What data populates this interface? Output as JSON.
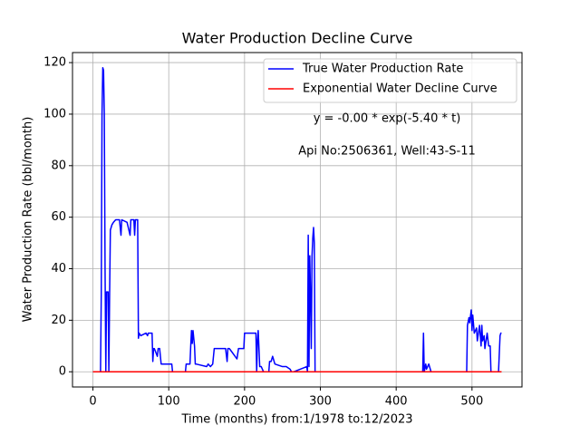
{
  "chart_data": {
    "type": "line",
    "title": "Water Production Decline Curve",
    "x_label": "Time (months) from:1/1978 to:12/2023",
    "y_label": "Water Production Rate (bbl/month)",
    "annotations": [
      "y = -0.00 * exp(-5.40 * t)",
      "Api No:2506361, Well:43-S-11"
    ],
    "xlim": [
      -26.95,
      565.95
    ],
    "ylim": [
      -5.9,
      123.9
    ],
    "xticks": [
      0,
      100,
      200,
      300,
      400,
      500
    ],
    "yticks": [
      0,
      20,
      40,
      60,
      80,
      100,
      120
    ],
    "grid": true,
    "legend": "upper right",
    "series": [
      {
        "name": "True Water Production Rate",
        "color": "#0000ff",
        "x": [
          0,
          10,
          11,
          12,
          13,
          14,
          15,
          16,
          17,
          18,
          20,
          21,
          22,
          23,
          25,
          27,
          30,
          35,
          37,
          38,
          45,
          49,
          50,
          54,
          55,
          56,
          58,
          59,
          60,
          61,
          63,
          70,
          72,
          73,
          78,
          79,
          80,
          81,
          85,
          86,
          88,
          90,
          104,
          105,
          122,
          123,
          128,
          129,
          130,
          131,
          132,
          134,
          135,
          136,
          150,
          152,
          155,
          158,
          160,
          175,
          177,
          178,
          180,
          190,
          192,
          199,
          200,
          215,
          216,
          217,
          218,
          220,
          222,
          225,
          232,
          233,
          235,
          237,
          238,
          240,
          250,
          255,
          260,
          262,
          265,
          282,
          283,
          284,
          285,
          286,
          287,
          288,
          289,
          290,
          291,
          292,
          293,
          435,
          436,
          437,
          439,
          440,
          443,
          446,
          493,
          494,
          496,
          497,
          499,
          500,
          501,
          503,
          506,
          507,
          510,
          512,
          513,
          514,
          516,
          517,
          520,
          522,
          524,
          525,
          535,
          537,
          538,
          539
        ],
        "values": [
          0,
          0,
          30,
          100,
          118,
          117,
          100,
          40,
          0,
          31,
          31,
          0,
          30,
          55,
          57,
          58,
          59,
          59,
          53,
          59,
          58,
          53,
          59,
          59,
          53,
          59,
          59,
          59,
          13,
          15,
          14,
          15,
          14,
          15,
          15,
          4,
          9,
          9,
          6,
          9,
          9,
          3,
          3,
          0,
          0,
          3,
          3,
          10,
          16,
          11,
          16,
          10,
          3,
          3,
          2,
          3,
          2,
          3,
          9,
          9,
          4,
          9,
          9,
          5,
          9,
          9,
          15,
          15,
          0,
          12,
          16,
          2,
          2,
          0,
          0,
          4,
          4,
          6,
          5,
          3,
          2,
          2,
          1,
          0,
          0,
          2,
          0,
          53,
          2,
          45,
          30,
          9,
          45,
          52,
          56,
          50,
          0,
          0,
          15,
          0,
          3,
          1,
          3,
          0,
          0,
          18,
          21,
          19,
          24,
          16,
          22,
          15,
          17,
          12,
          18,
          10,
          18,
          12,
          14,
          9,
          15,
          10,
          10,
          0,
          0,
          14,
          15,
          15
        ]
      },
      {
        "name": "Exponential Water Decline Curve",
        "color": "#ff0000",
        "x": [
          0,
          539
        ],
        "values": [
          0,
          0
        ]
      }
    ]
  }
}
